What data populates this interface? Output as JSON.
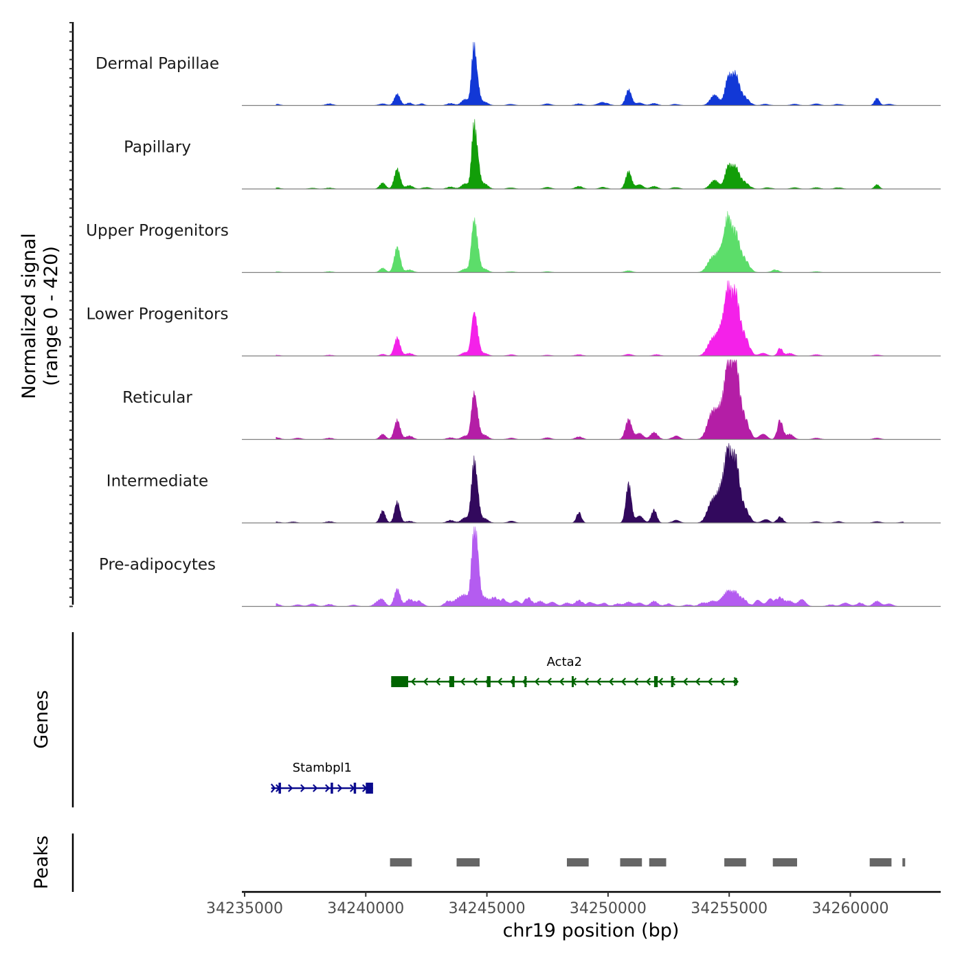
{
  "chart_data": {
    "type": "area",
    "subtype": "genome-coverage-track",
    "chromosome": "chr19",
    "xlabel": "chr19 position (bp)",
    "xlim": [
      34235000,
      34262000
    ],
    "x_ticks": [
      34235000,
      34240000,
      34245000,
      34250000,
      34255000,
      34260000
    ],
    "x_tick_labels": [
      "34235000",
      "34240000",
      "34245000",
      "34250000",
      "34255000",
      "34260000"
    ],
    "ylabel_line1": "Normalized signal",
    "ylabel_line2": "(range 0 - 420)",
    "ylim": [
      0,
      420
    ],
    "tracks": [
      {
        "name": "Dermal Papillae",
        "color": "#1238D6",
        "peaks": [
          [
            34236300,
            8,
            150
          ],
          [
            34238500,
            10,
            150
          ],
          [
            34240700,
            10,
            150
          ],
          [
            34241300,
            65,
            120
          ],
          [
            34241800,
            15,
            120
          ],
          [
            34242300,
            10,
            120
          ],
          [
            34243500,
            12,
            150
          ],
          [
            34244100,
            35,
            150
          ],
          [
            34244450,
            300,
            90
          ],
          [
            34244600,
            120,
            100
          ],
          [
            34244900,
            20,
            150
          ],
          [
            34246000,
            8,
            150
          ],
          [
            34247500,
            10,
            150
          ],
          [
            34248800,
            10,
            150
          ],
          [
            34249800,
            18,
            200
          ],
          [
            34250850,
            90,
            120
          ],
          [
            34251300,
            15,
            150
          ],
          [
            34251900,
            12,
            150
          ],
          [
            34252800,
            8,
            150
          ],
          [
            34254400,
            60,
            180
          ],
          [
            34254950,
            145,
            130
          ],
          [
            34255250,
            165,
            150
          ],
          [
            34255600,
            50,
            200
          ],
          [
            34256500,
            8,
            150
          ],
          [
            34257700,
            8,
            150
          ],
          [
            34258600,
            10,
            150
          ],
          [
            34259500,
            8,
            150
          ],
          [
            34261100,
            42,
            100
          ],
          [
            34261600,
            8,
            150
          ]
        ]
      },
      {
        "name": "Papillary",
        "color": "#129E09",
        "peaks": [
          [
            34236300,
            8,
            150
          ],
          [
            34237800,
            5,
            150
          ],
          [
            34238500,
            6,
            150
          ],
          [
            34240700,
            35,
            120
          ],
          [
            34241300,
            115,
            120
          ],
          [
            34241800,
            20,
            150
          ],
          [
            34242500,
            10,
            150
          ],
          [
            34243500,
            12,
            150
          ],
          [
            34244100,
            30,
            150
          ],
          [
            34244450,
            305,
            90
          ],
          [
            34244600,
            170,
            100
          ],
          [
            34244900,
            30,
            150
          ],
          [
            34246000,
            8,
            150
          ],
          [
            34247500,
            10,
            150
          ],
          [
            34248800,
            15,
            150
          ],
          [
            34249800,
            10,
            150
          ],
          [
            34250850,
            100,
            120
          ],
          [
            34251300,
            25,
            150
          ],
          [
            34251900,
            15,
            150
          ],
          [
            34252800,
            10,
            150
          ],
          [
            34254400,
            50,
            180
          ],
          [
            34254950,
            120,
            130
          ],
          [
            34255250,
            115,
            150
          ],
          [
            34255600,
            40,
            200
          ],
          [
            34256600,
            8,
            150
          ],
          [
            34257700,
            8,
            150
          ],
          [
            34258600,
            8,
            150
          ],
          [
            34259500,
            8,
            150
          ],
          [
            34261100,
            25,
            100
          ]
        ]
      },
      {
        "name": "Upper Progenitors",
        "color": "#5CDD6A",
        "peaks": [
          [
            34236300,
            5,
            150
          ],
          [
            34238500,
            5,
            150
          ],
          [
            34240700,
            25,
            120
          ],
          [
            34241300,
            145,
            120
          ],
          [
            34241800,
            15,
            150
          ],
          [
            34244100,
            20,
            150
          ],
          [
            34244450,
            250,
            100
          ],
          [
            34244600,
            120,
            100
          ],
          [
            34244900,
            20,
            150
          ],
          [
            34246000,
            5,
            150
          ],
          [
            34247500,
            5,
            150
          ],
          [
            34250850,
            10,
            150
          ],
          [
            34254300,
            80,
            200
          ],
          [
            34254700,
            120,
            180
          ],
          [
            34254950,
            250,
            130
          ],
          [
            34255250,
            210,
            150
          ],
          [
            34255600,
            80,
            200
          ],
          [
            34256900,
            15,
            150
          ],
          [
            34258600,
            5,
            150
          ]
        ]
      },
      {
        "name": "Lower Progenitors",
        "color": "#F421E9",
        "peaks": [
          [
            34236300,
            5,
            150
          ],
          [
            34238500,
            5,
            150
          ],
          [
            34240700,
            10,
            120
          ],
          [
            34241300,
            105,
            120
          ],
          [
            34241800,
            15,
            150
          ],
          [
            34244100,
            20,
            150
          ],
          [
            34244450,
            210,
            100
          ],
          [
            34244600,
            100,
            100
          ],
          [
            34244900,
            15,
            150
          ],
          [
            34246000,
            8,
            150
          ],
          [
            34247500,
            5,
            150
          ],
          [
            34248800,
            8,
            150
          ],
          [
            34250850,
            10,
            150
          ],
          [
            34252000,
            8,
            150
          ],
          [
            34254300,
            90,
            200
          ],
          [
            34254700,
            150,
            180
          ],
          [
            34254950,
            300,
            130
          ],
          [
            34255250,
            330,
            150
          ],
          [
            34255600,
            120,
            200
          ],
          [
            34256400,
            15,
            150
          ],
          [
            34257100,
            45,
            100
          ],
          [
            34257500,
            15,
            150
          ],
          [
            34258600,
            8,
            150
          ],
          [
            34261100,
            6,
            150
          ]
        ]
      },
      {
        "name": "Reticular",
        "color": "#B41EA6",
        "peaks": [
          [
            34236300,
            12,
            150
          ],
          [
            34237200,
            8,
            150
          ],
          [
            34238500,
            8,
            150
          ],
          [
            34240700,
            30,
            120
          ],
          [
            34241300,
            110,
            120
          ],
          [
            34241800,
            20,
            150
          ],
          [
            34243500,
            10,
            150
          ],
          [
            34244100,
            20,
            150
          ],
          [
            34244450,
            225,
            100
          ],
          [
            34244600,
            100,
            100
          ],
          [
            34244900,
            25,
            150
          ],
          [
            34246000,
            8,
            150
          ],
          [
            34247500,
            10,
            150
          ],
          [
            34248800,
            15,
            150
          ],
          [
            34250850,
            115,
            130
          ],
          [
            34251300,
            35,
            150
          ],
          [
            34251900,
            40,
            150
          ],
          [
            34252800,
            20,
            150
          ],
          [
            34254300,
            150,
            200
          ],
          [
            34254700,
            160,
            180
          ],
          [
            34254950,
            340,
            130
          ],
          [
            34255250,
            420,
            150
          ],
          [
            34255600,
            130,
            200
          ],
          [
            34256400,
            30,
            150
          ],
          [
            34257100,
            110,
            110
          ],
          [
            34257500,
            30,
            150
          ],
          [
            34258600,
            8,
            150
          ],
          [
            34261100,
            8,
            150
          ]
        ]
      },
      {
        "name": "Intermediate",
        "color": "#32095D",
        "peaks": [
          [
            34236300,
            6,
            150
          ],
          [
            34237000,
            6,
            150
          ],
          [
            34238500,
            8,
            150
          ],
          [
            34240700,
            70,
            110
          ],
          [
            34241300,
            120,
            110
          ],
          [
            34241800,
            10,
            150
          ],
          [
            34243500,
            15,
            150
          ],
          [
            34244100,
            30,
            150
          ],
          [
            34244450,
            300,
            100
          ],
          [
            34244600,
            140,
            100
          ],
          [
            34244900,
            25,
            150
          ],
          [
            34246000,
            10,
            150
          ],
          [
            34248800,
            60,
            100
          ],
          [
            34250850,
            225,
            110
          ],
          [
            34251300,
            40,
            150
          ],
          [
            34251900,
            75,
            110
          ],
          [
            34252800,
            15,
            150
          ],
          [
            34254300,
            120,
            200
          ],
          [
            34254700,
            180,
            180
          ],
          [
            34254950,
            320,
            130
          ],
          [
            34255250,
            350,
            150
          ],
          [
            34255600,
            90,
            200
          ],
          [
            34256500,
            20,
            150
          ],
          [
            34257100,
            35,
            120
          ],
          [
            34258600,
            8,
            150
          ],
          [
            34259500,
            8,
            150
          ],
          [
            34261100,
            8,
            150
          ],
          [
            34262200,
            6,
            150
          ]
        ]
      },
      {
        "name": "Pre-adipocytes",
        "color": "#B45CF0",
        "peaks": [
          [
            34236300,
            15,
            150
          ],
          [
            34237200,
            10,
            150
          ],
          [
            34237800,
            15,
            150
          ],
          [
            34238500,
            12,
            150
          ],
          [
            34239500,
            8,
            150
          ],
          [
            34240500,
            25,
            150
          ],
          [
            34240700,
            30,
            120
          ],
          [
            34241300,
            100,
            120
          ],
          [
            34241800,
            40,
            150
          ],
          [
            34242200,
            30,
            150
          ],
          [
            34243400,
            30,
            150
          ],
          [
            34243800,
            40,
            150
          ],
          [
            34244100,
            60,
            150
          ],
          [
            34244450,
            360,
            100
          ],
          [
            34244600,
            250,
            100
          ],
          [
            34244900,
            50,
            150
          ],
          [
            34245300,
            50,
            150
          ],
          [
            34245700,
            40,
            150
          ],
          [
            34246200,
            30,
            150
          ],
          [
            34246700,
            50,
            150
          ],
          [
            34247200,
            30,
            150
          ],
          [
            34247700,
            25,
            150
          ],
          [
            34248300,
            20,
            150
          ],
          [
            34248800,
            35,
            150
          ],
          [
            34249300,
            25,
            150
          ],
          [
            34249800,
            20,
            150
          ],
          [
            34250400,
            15,
            150
          ],
          [
            34250850,
            25,
            150
          ],
          [
            34251300,
            20,
            150
          ],
          [
            34251900,
            30,
            150
          ],
          [
            34252500,
            15,
            150
          ],
          [
            34253300,
            10,
            150
          ],
          [
            34253900,
            20,
            150
          ],
          [
            34254300,
            30,
            150
          ],
          [
            34254700,
            40,
            150
          ],
          [
            34254950,
            70,
            130
          ],
          [
            34255250,
            80,
            150
          ],
          [
            34255600,
            40,
            150
          ],
          [
            34256200,
            35,
            150
          ],
          [
            34256700,
            40,
            150
          ],
          [
            34257100,
            50,
            150
          ],
          [
            34257500,
            30,
            150
          ],
          [
            34258000,
            40,
            150
          ],
          [
            34259200,
            10,
            150
          ],
          [
            34259800,
            25,
            150
          ],
          [
            34260400,
            20,
            150
          ],
          [
            34261100,
            30,
            150
          ],
          [
            34261600,
            15,
            150
          ]
        ]
      }
    ],
    "genes": [
      {
        "name": "Acta2",
        "strand": "-",
        "color": "#006400",
        "start": 34241050,
        "end": 34255350,
        "exons": [
          [
            34241050,
            34241750
          ],
          [
            34243450,
            34243650
          ],
          [
            34245000,
            34245150
          ],
          [
            34246050,
            34246150
          ],
          [
            34246550,
            34246600
          ],
          [
            34248500,
            34248550
          ],
          [
            34251900,
            34252050
          ],
          [
            34252600,
            34252700
          ]
        ]
      },
      {
        "name": "Stambpl1",
        "strand": "+",
        "color": "#0A0A8E",
        "start": 34236100,
        "end": 34240300,
        "exons": [
          [
            34236400,
            34236500
          ],
          [
            34238550,
            34238650
          ],
          [
            34239500,
            34239600
          ],
          [
            34240000,
            34240300
          ]
        ]
      }
    ],
    "genes_label": "Genes",
    "peaks_label": "Peaks",
    "peak_regions": [
      [
        34241000,
        34241900
      ],
      [
        34243750,
        34244700
      ],
      [
        34248300,
        34249200
      ],
      [
        34250500,
        34251400
      ],
      [
        34251700,
        34252400
      ],
      [
        34254800,
        34255700
      ],
      [
        34256800,
        34257800
      ],
      [
        34260800,
        34261700
      ],
      [
        34262150,
        34262250
      ]
    ]
  }
}
